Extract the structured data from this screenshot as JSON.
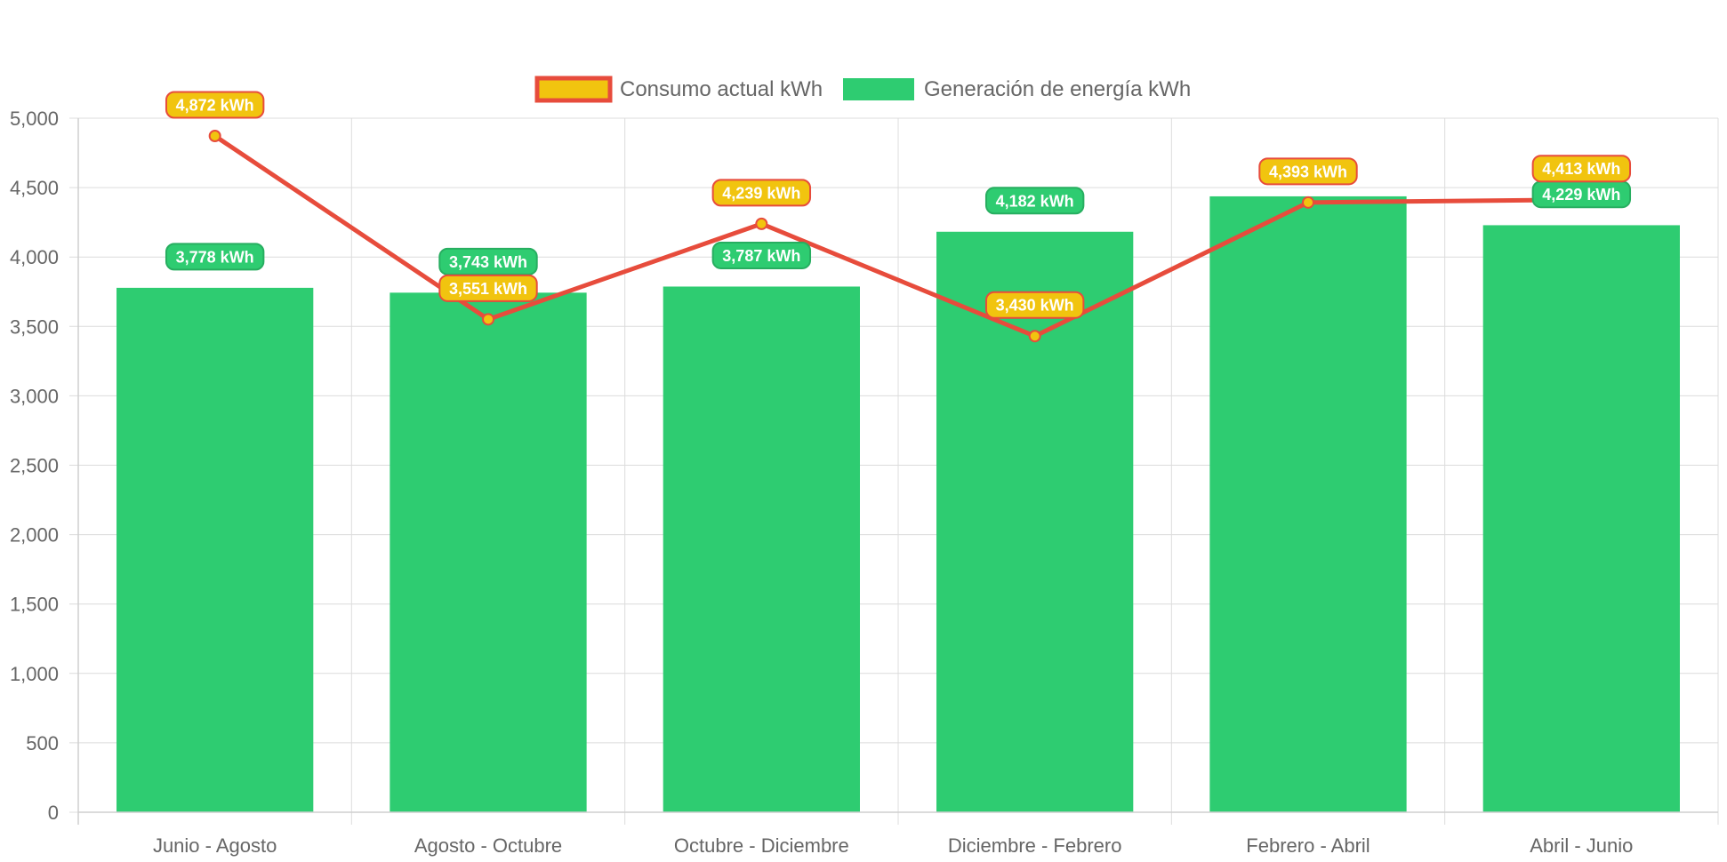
{
  "chart_data": {
    "type": "bar",
    "categories": [
      "Junio - Agosto",
      "Agosto - Octubre",
      "Octubre - Diciembre",
      "Diciembre - Febrero",
      "Febrero - Abril",
      "Abril - Junio"
    ],
    "series": [
      {
        "name": "Consumo actual kWh",
        "type": "line",
        "values": [
          4872,
          3551,
          4239,
          3430,
          4393,
          4413
        ],
        "labels": [
          "4,872 kWh",
          "3,551 kWh",
          "4,239 kWh",
          "3,430 kWh",
          "4,393 kWh",
          "4,413 kWh"
        ],
        "color": "#e74c3c",
        "fill": "#f1c40f"
      },
      {
        "name": "Generación de energía kWh",
        "type": "bar",
        "values": [
          3778,
          3743,
          3787,
          4182,
          4437,
          4229
        ],
        "labels": [
          "3,778 kWh",
          "3,743 kWh",
          "3,787 kWh",
          "4,182 kWh",
          "",
          "4,229 kWh"
        ],
        "color": "#2ecc71"
      }
    ],
    "ylim": [
      0,
      5000
    ],
    "yticks": [
      "0",
      "500",
      "1,000",
      "1,500",
      "2,000",
      "2,500",
      "3,000",
      "3,500",
      "4,000",
      "4,500",
      "5,000"
    ],
    "grid": true,
    "legend": "top-center",
    "title": "",
    "xlabel": "",
    "ylabel": ""
  }
}
